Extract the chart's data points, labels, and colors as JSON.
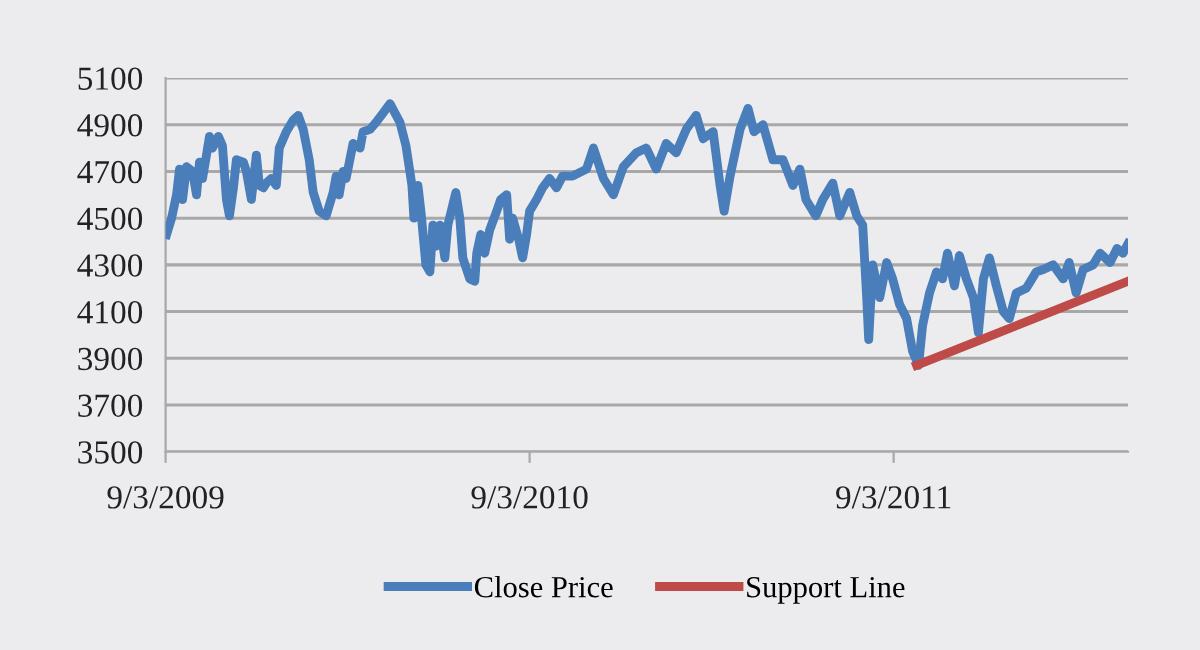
{
  "chart_data": {
    "type": "line",
    "xlim": [
      "2009-09-03",
      "2012-04-25"
    ],
    "xticks": [
      {
        "value": "2009-09-03",
        "label": "9/3/2009"
      },
      {
        "value": "2010-09-03",
        "label": "9/3/2010"
      },
      {
        "value": "2011-09-03",
        "label": "9/3/2011"
      }
    ],
    "ylim": [
      3500,
      5100
    ],
    "yticks": [
      3500,
      3700,
      3900,
      4100,
      4300,
      4500,
      4700,
      4900,
      5100
    ],
    "grid": "y",
    "legend": "bottom",
    "marker": "none",
    "line_style": "solid",
    "series": [
      {
        "name": "Close Price",
        "color": "#4a7ebb",
        "x": [
          "2009-09-04",
          "2009-09-09",
          "2009-09-14",
          "2009-09-17",
          "2009-09-20",
          "2009-09-24",
          "2009-09-30",
          "2009-10-04",
          "2009-10-07",
          "2009-10-10",
          "2009-10-14",
          "2009-10-17",
          "2009-10-20",
          "2009-10-26",
          "2009-10-30",
          "2009-11-03",
          "2009-11-06",
          "2009-11-10",
          "2009-11-13",
          "2009-11-20",
          "2009-11-23",
          "2009-11-28",
          "2009-12-03",
          "2009-12-06",
          "2009-12-10",
          "2009-12-13",
          "2009-12-18",
          "2009-12-23",
          "2009-12-26",
          "2010-01-02",
          "2010-01-09",
          "2010-01-14",
          "2010-01-19",
          "2010-01-25",
          "2010-01-29",
          "2010-02-04",
          "2010-02-11",
          "2010-02-18",
          "2010-02-21",
          "2010-02-24",
          "2010-02-28",
          "2010-03-03",
          "2010-03-10",
          "2010-03-17",
          "2010-03-20",
          "2010-03-27",
          "2010-04-02",
          "2010-04-09",
          "2010-04-16",
          "2010-04-21",
          "2010-04-26",
          "2010-05-02",
          "2010-05-08",
          "2010-05-10",
          "2010-05-14",
          "2010-05-17",
          "2010-05-22",
          "2010-05-26",
          "2010-05-29",
          "2010-06-01",
          "2010-06-05",
          "2010-06-10",
          "2010-06-13",
          "2010-06-17",
          "2010-06-21",
          "2010-06-25",
          "2010-06-28",
          "2010-07-05",
          "2010-07-10",
          "2010-07-12",
          "2010-07-16",
          "2010-07-20",
          "2010-07-25",
          "2010-08-01",
          "2010-08-05",
          "2010-08-11",
          "2010-08-14",
          "2010-08-17",
          "2010-08-23",
          "2010-08-27",
          "2010-08-31",
          "2010-09-03",
          "2010-09-10",
          "2010-09-16",
          "2010-09-23",
          "2010-09-30",
          "2010-10-06",
          "2010-10-16",
          "2010-10-30",
          "2010-11-06",
          "2010-11-16",
          "2010-11-26",
          "2010-12-06",
          "2010-12-19",
          "2010-12-29",
          "2011-01-08",
          "2011-01-18",
          "2011-01-28",
          "2011-02-07",
          "2011-02-17",
          "2011-02-24",
          "2011-03-06",
          "2011-03-13",
          "2011-03-17",
          "2011-03-23",
          "2011-04-02",
          "2011-04-10",
          "2011-04-16",
          "2011-04-25",
          "2011-05-05",
          "2011-05-15",
          "2011-05-25",
          "2011-06-01",
          "2011-06-07",
          "2011-06-17",
          "2011-06-24",
          "2011-07-04",
          "2011-07-11",
          "2011-07-21",
          "2011-07-28",
          "2011-08-03",
          "2011-08-07",
          "2011-08-09",
          "2011-08-13",
          "2011-08-20",
          "2011-08-27",
          "2011-09-02",
          "2011-09-09",
          "2011-09-16",
          "2011-09-22",
          "2011-09-28",
          "2011-10-02",
          "2011-10-09",
          "2011-10-16",
          "2011-10-22",
          "2011-10-27",
          "2011-11-03",
          "2011-11-08",
          "2011-11-15",
          "2011-11-22",
          "2011-11-27",
          "2011-12-02",
          "2011-12-08",
          "2011-12-15",
          "2011-12-22",
          "2011-12-28",
          "2012-01-04",
          "2012-01-14",
          "2012-01-24",
          "2012-01-31",
          "2012-02-10",
          "2012-02-20",
          "2012-02-26",
          "2012-03-04",
          "2012-03-11",
          "2012-03-21",
          "2012-03-28",
          "2012-04-07",
          "2012-04-14",
          "2012-04-20",
          "2012-04-25"
        ],
        "values": [
          4430,
          4500,
          4600,
          4710,
          4580,
          4720,
          4700,
          4600,
          4740,
          4670,
          4770,
          4850,
          4800,
          4850,
          4810,
          4580,
          4510,
          4630,
          4750,
          4740,
          4700,
          4580,
          4770,
          4640,
          4630,
          4650,
          4670,
          4640,
          4800,
          4870,
          4920,
          4940,
          4880,
          4750,
          4610,
          4530,
          4510,
          4610,
          4680,
          4600,
          4700,
          4670,
          4820,
          4800,
          4870,
          4880,
          4910,
          4950,
          4990,
          4950,
          4910,
          4810,
          4640,
          4500,
          4640,
          4530,
          4300,
          4270,
          4470,
          4380,
          4470,
          4330,
          4470,
          4540,
          4610,
          4500,
          4330,
          4240,
          4230,
          4350,
          4430,
          4350,
          4450,
          4530,
          4580,
          4600,
          4410,
          4500,
          4410,
          4330,
          4430,
          4530,
          4580,
          4630,
          4670,
          4630,
          4680,
          4680,
          4710,
          4800,
          4670,
          4600,
          4720,
          4780,
          4800,
          4710,
          4820,
          4780,
          4880,
          4940,
          4840,
          4870,
          4640,
          4530,
          4680,
          4880,
          4970,
          4870,
          4900,
          4750,
          4750,
          4640,
          4710,
          4580,
          4510,
          4580,
          4650,
          4510,
          4610,
          4510,
          4470,
          4160,
          3980,
          4300,
          4160,
          4310,
          4240,
          4130,
          4070,
          3930,
          3870,
          4040,
          4180,
          4270,
          4240,
          4350,
          4210,
          4340,
          4240,
          4160,
          4010,
          4240,
          4330,
          4210,
          4100,
          4070,
          4180,
          4200,
          4270,
          4280,
          4300,
          4240,
          4310,
          4180,
          4280,
          4300,
          4350,
          4310,
          4370,
          4350,
          4390
        ]
      },
      {
        "name": "Support Line",
        "color": "#be4b48",
        "x": [
          "2011-09-26",
          "2012-04-25"
        ],
        "values": [
          3870,
          4230
        ]
      }
    ]
  }
}
